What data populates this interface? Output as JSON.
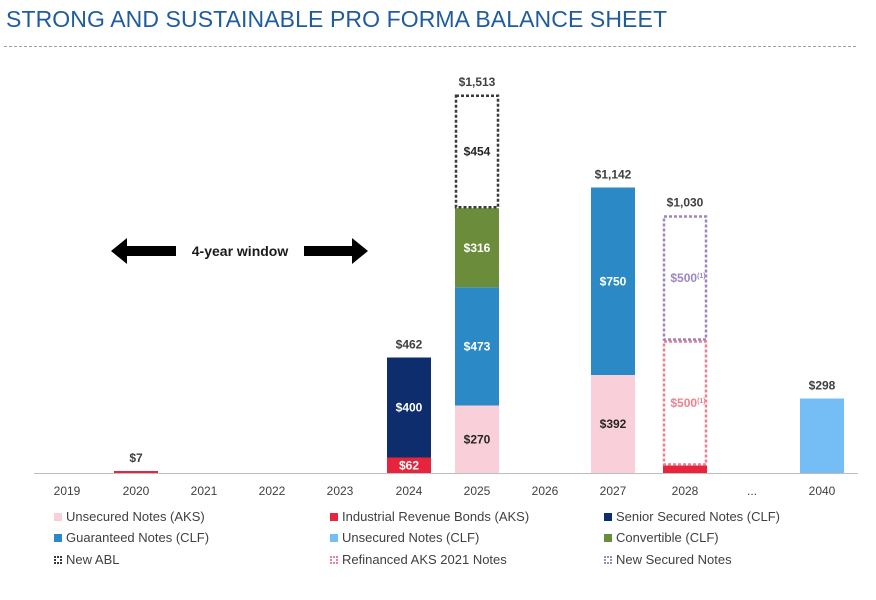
{
  "title": "STRONG AND SUSTAINABLE PRO FORMA BALANCE SHEET",
  "chart_data": {
    "type": "bar",
    "stacked": true,
    "categories": [
      "2019",
      "2020",
      "2021",
      "2022",
      "2023",
      "2024",
      "2025",
      "2026",
      "2027",
      "2028",
      "...",
      "2040"
    ],
    "totals": [
      "",
      "$7",
      "",
      "",
      "",
      "$462",
      "$1,513",
      "",
      "$1,142",
      "$1,030",
      "",
      "$298"
    ],
    "series": [
      {
        "name": "Unsecured Notes (AKS)",
        "color": "#f9cfd9",
        "style": "solid",
        "values": [
          0,
          0,
          0,
          0,
          0,
          0,
          270,
          0,
          392,
          0,
          0,
          0
        ],
        "labels": [
          "",
          "",
          "",
          "",
          "",
          "",
          "$270",
          "",
          "$392",
          "",
          "",
          ""
        ]
      },
      {
        "name": "Industrial Revenue Bonds (AKS)",
        "color": "#e8243c",
        "style": "solid",
        "values": [
          0,
          7,
          0,
          0,
          0,
          62,
          0,
          0,
          0,
          30,
          0,
          0
        ],
        "labels": [
          "",
          "",
          "",
          "",
          "",
          "$62",
          "",
          "",
          "",
          "",
          "",
          ""
        ]
      },
      {
        "name": "Senior Secured Notes (CLF)",
        "color": "#0d2d6c",
        "style": "solid",
        "values": [
          0,
          0,
          0,
          0,
          0,
          400,
          0,
          0,
          0,
          0,
          0,
          0
        ],
        "labels": [
          "",
          "",
          "",
          "",
          "",
          "$400",
          "",
          "",
          "",
          "",
          "",
          ""
        ]
      },
      {
        "name": "Guaranteed Notes (CLF)",
        "color": "#2b8ac6",
        "style": "solid",
        "values": [
          0,
          0,
          0,
          0,
          0,
          0,
          473,
          0,
          750,
          0,
          0,
          0
        ],
        "labels": [
          "",
          "",
          "",
          "",
          "",
          "",
          "$473",
          "",
          "$750",
          "",
          "",
          ""
        ]
      },
      {
        "name": "Unsecured Notes (CLF)",
        "color": "#74bdf5",
        "style": "solid",
        "values": [
          0,
          0,
          0,
          0,
          0,
          0,
          0,
          0,
          0,
          0,
          0,
          298
        ],
        "labels": [
          "",
          "",
          "",
          "",
          "",
          "",
          "",
          "",
          "",
          "",
          "",
          ""
        ]
      },
      {
        "name": "Convertible (CLF)",
        "color": "#6b8c3a",
        "style": "solid",
        "values": [
          0,
          0,
          0,
          0,
          0,
          0,
          316,
          0,
          0,
          0,
          0,
          0
        ],
        "labels": [
          "",
          "",
          "",
          "",
          "",
          "",
          "$316",
          "",
          "",
          "",
          "",
          ""
        ]
      },
      {
        "name": "New ABL",
        "color": "#3a3a3a",
        "style": "dashed",
        "values": [
          0,
          0,
          0,
          0,
          0,
          0,
          454,
          0,
          0,
          0,
          0,
          0
        ],
        "labels": [
          "",
          "",
          "",
          "",
          "",
          "",
          "$454",
          "",
          "",
          "",
          "",
          ""
        ]
      },
      {
        "name": "Refinanced AKS 2021 Notes",
        "color": "#ee7f8d",
        "style": "dashed",
        "values": [
          0,
          0,
          0,
          0,
          0,
          0,
          0,
          0,
          0,
          500,
          0,
          0
        ],
        "labels": [
          "",
          "",
          "",
          "",
          "",
          "",
          "",
          "",
          "",
          "$500",
          "",
          ""
        ]
      },
      {
        "name": "New Secured Notes",
        "color": "#9d86bf",
        "style": "dashed",
        "values": [
          0,
          0,
          0,
          0,
          0,
          0,
          0,
          0,
          0,
          500,
          0,
          0
        ],
        "labels": [
          "",
          "",
          "",
          "",
          "",
          "",
          "",
          "",
          "",
          "$500",
          "",
          ""
        ]
      }
    ],
    "footnote_marker": "(1)",
    "annotation": "4-year window",
    "ylim": [
      0,
      1600
    ],
    "grid": false,
    "legend_position": "bottom"
  }
}
